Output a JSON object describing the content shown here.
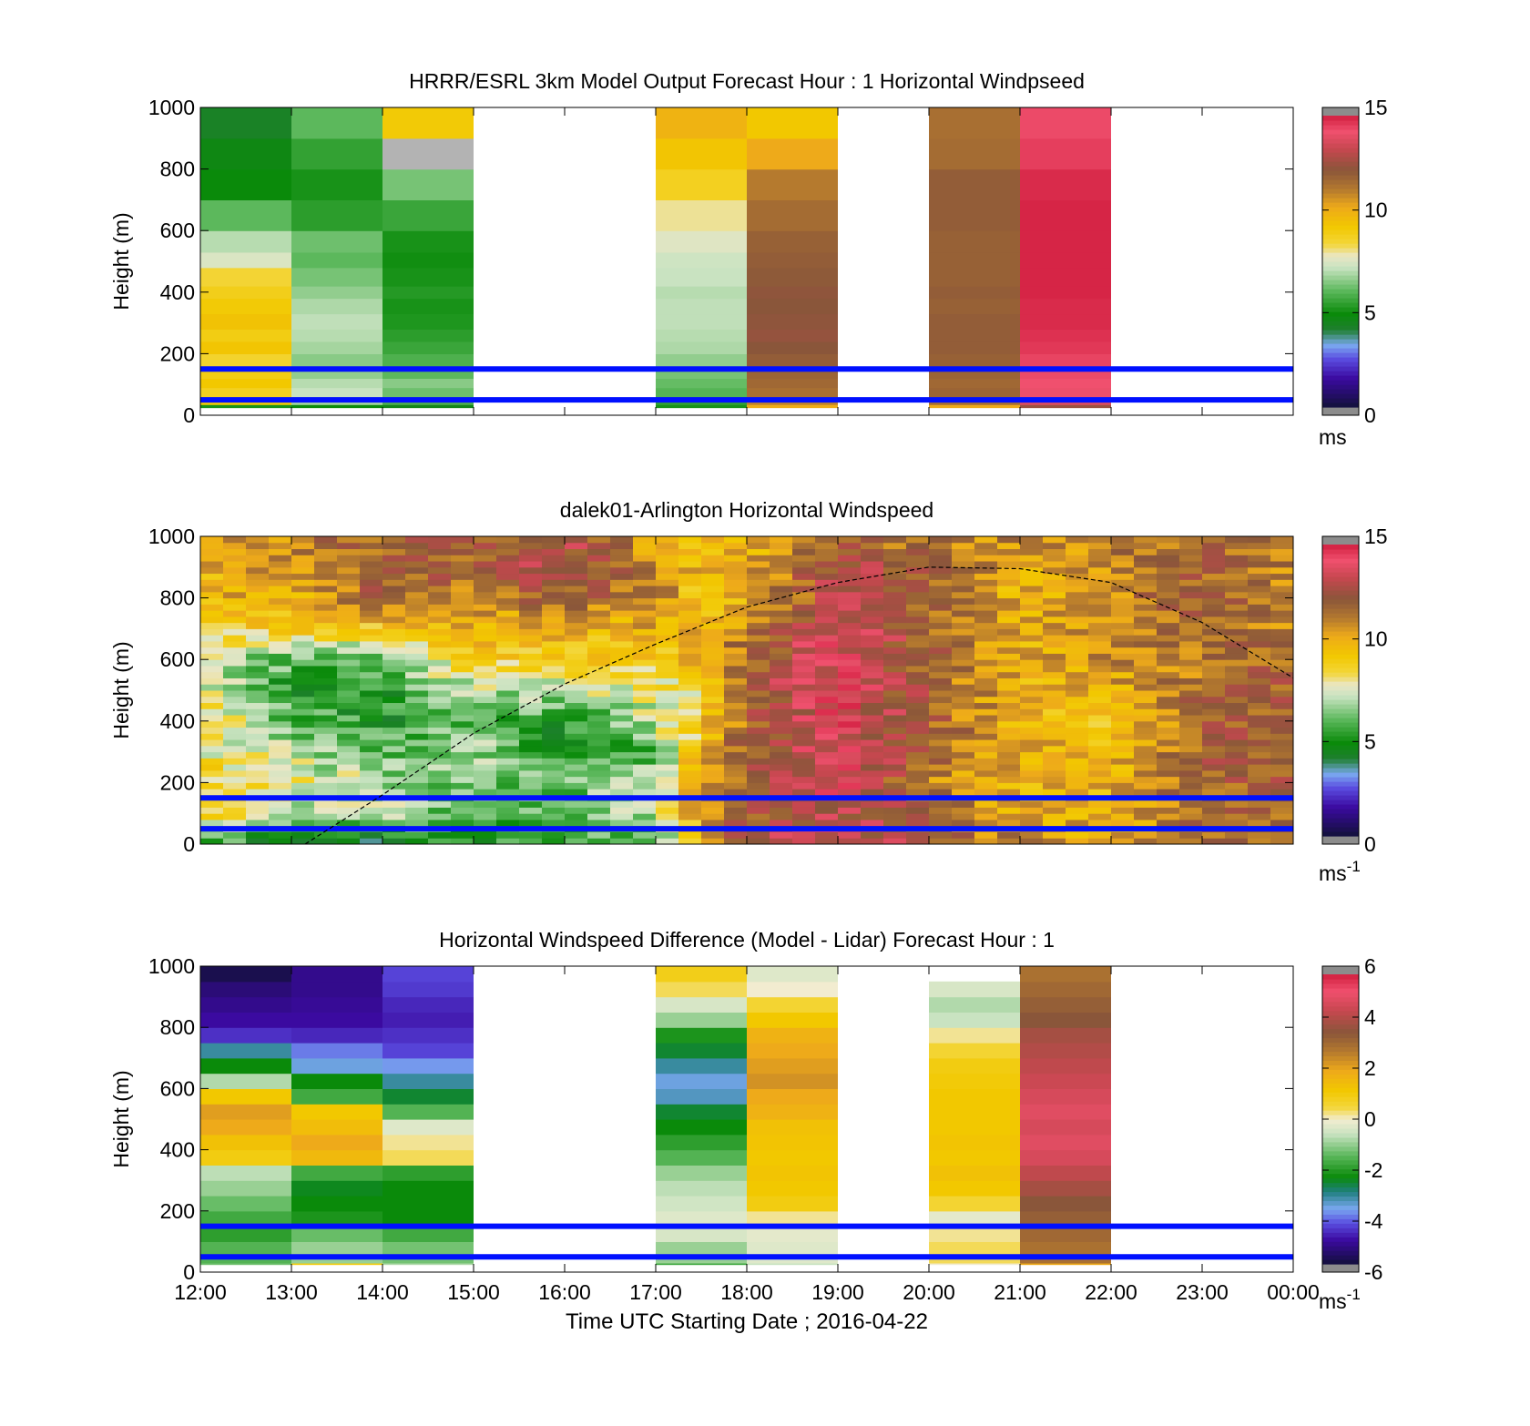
{
  "figure": {
    "shared_xlabel": "Time UTC  Starting Date ; 2016-04-22"
  },
  "colormaps": {
    "windspeed": [
      [
        0.0,
        "#12103a"
      ],
      [
        1.5,
        "#3b0aa0"
      ],
      [
        2.5,
        "#5a4de0"
      ],
      [
        3.2,
        "#7aa8f0"
      ],
      [
        4.0,
        "#1f7f2f"
      ],
      [
        4.8,
        "#0a8a0a"
      ],
      [
        6.0,
        "#5cb85c"
      ],
      [
        7.2,
        "#c9e3c1"
      ],
      [
        7.8,
        "#eae6c4"
      ],
      [
        8.4,
        "#f3d63a"
      ],
      [
        9.3,
        "#f2c800"
      ],
      [
        10.3,
        "#eeaa1a"
      ],
      [
        11.2,
        "#b57a2e"
      ],
      [
        12.2,
        "#8a563a"
      ],
      [
        13.3,
        "#c6474f"
      ],
      [
        14.2,
        "#f0506e"
      ],
      [
        15.0,
        "#d21f40"
      ]
    ],
    "difference": [
      [
        -6.0,
        "#12103a"
      ],
      [
        -5.0,
        "#3b0aa0"
      ],
      [
        -4.3,
        "#5a4de0"
      ],
      [
        -3.7,
        "#7aa8f0"
      ],
      [
        -3.0,
        "#1f7f7f"
      ],
      [
        -2.4,
        "#0a8a0a"
      ],
      [
        -1.5,
        "#5cb85c"
      ],
      [
        -0.6,
        "#c9e3c1"
      ],
      [
        0.0,
        "#f2ecd0"
      ],
      [
        0.5,
        "#f3d63a"
      ],
      [
        1.2,
        "#f2c800"
      ],
      [
        2.0,
        "#eeaa1a"
      ],
      [
        2.8,
        "#b57a2e"
      ],
      [
        3.6,
        "#8a563a"
      ],
      [
        4.5,
        "#c6474f"
      ],
      [
        5.3,
        "#f0506e"
      ],
      [
        6.0,
        "#d21f40"
      ]
    ]
  },
  "chart_data": [
    {
      "type": "heatmap",
      "title": "HRRR/ESRL 3km Model Output   Forecast Hour : 1 Horizontal Windpseed",
      "xlabel": "",
      "ylabel": "Height (m)",
      "xlim": [
        "12:00",
        "00:00"
      ],
      "xticks": [
        "12:00",
        "13:00",
        "14:00",
        "15:00",
        "16:00",
        "17:00",
        "18:00",
        "19:00",
        "20:00",
        "21:00",
        "22:00",
        "23:00",
        "00:00"
      ],
      "show_xtick_labels": false,
      "ylim": [
        0,
        1000
      ],
      "yticks": [
        0,
        200,
        400,
        600,
        800,
        1000
      ],
      "colorbar": {
        "range": [
          0,
          15
        ],
        "ticks": [
          0,
          5,
          10,
          15
        ],
        "label": "ms",
        "label_sup": "",
        "colormap": "windspeed"
      },
      "reference_lines_m": [
        50,
        150
      ],
      "columns": [
        {
          "start_hour": 0,
          "end_hour": 1,
          "levels_m": [
            35,
            60,
            90,
            120,
            150,
            200,
            240,
            280,
            330,
            380,
            420,
            480,
            530,
            600,
            700,
            800,
            900,
            1000
          ],
          "values": [
            5.0,
            9.2,
            8.8,
            9.3,
            9.0,
            8.6,
            9.4,
            9.0,
            9.5,
            9.2,
            8.9,
            8.5,
            7.5,
            7.0,
            6.0,
            4.8,
            4.6,
            4.2
          ]
        },
        {
          "start_hour": 1,
          "end_hour": 2,
          "levels_m": [
            35,
            60,
            90,
            120,
            150,
            200,
            240,
            280,
            330,
            380,
            420,
            480,
            530,
            600,
            700,
            800,
            900,
            1000
          ],
          "values": [
            4.8,
            6.8,
            7.2,
            7.0,
            6.6,
            6.5,
            6.8,
            7.0,
            7.1,
            6.9,
            6.6,
            6.3,
            6.0,
            6.2,
            5.3,
            5.0,
            5.4,
            6.0
          ]
        },
        {
          "start_hour": 2,
          "end_hour": 3,
          "levels_m": [
            35,
            60,
            90,
            120,
            150,
            200,
            240,
            280,
            330,
            380,
            420,
            480,
            530,
            600,
            700,
            800,
            900,
            1000
          ],
          "values": [
            4.5,
            5.8,
            6.2,
            6.5,
            6.0,
            5.8,
            5.5,
            5.3,
            5.1,
            5.0,
            5.2,
            5.0,
            4.9,
            5.0,
            5.5,
            6.3,
            null,
            9.2
          ],
          "missing_color": "#b3b3b3"
        },
        {
          "start_hour": 5,
          "end_hour": 6,
          "levels_m": [
            35,
            60,
            90,
            120,
            150,
            200,
            240,
            280,
            330,
            380,
            420,
            480,
            530,
            600,
            700,
            800,
            900,
            1000
          ],
          "values": [
            5.0,
            5.4,
            5.9,
            6.1,
            6.3,
            6.6,
            6.9,
            7.0,
            7.1,
            7.1,
            7.0,
            7.2,
            7.3,
            7.6,
            8.0,
            8.8,
            9.4,
            10.0
          ]
        },
        {
          "start_hour": 6,
          "end_hour": 7,
          "levels_m": [
            35,
            60,
            90,
            120,
            150,
            200,
            240,
            280,
            330,
            380,
            420,
            480,
            530,
            600,
            700,
            800,
            900,
            1000
          ],
          "values": [
            10.2,
            11.0,
            11.5,
            11.7,
            11.8,
            12.0,
            12.2,
            12.4,
            12.3,
            12.2,
            12.3,
            12.1,
            12.0,
            11.9,
            11.6,
            11.2,
            10.3,
            9.3
          ]
        },
        {
          "start_hour": 8,
          "end_hour": 9,
          "levels_m": [
            35,
            60,
            90,
            120,
            150,
            200,
            240,
            280,
            330,
            380,
            420,
            480,
            530,
            600,
            700,
            800,
            900,
            1000
          ],
          "values": [
            10.3,
            11.5,
            11.8,
            11.7,
            11.8,
            11.9,
            12.0,
            12.0,
            12.0,
            11.9,
            12.0,
            11.9,
            11.9,
            11.9,
            12.0,
            12.0,
            11.6,
            11.5
          ]
        },
        {
          "start_hour": 9,
          "end_hour": 10,
          "levels_m": [
            35,
            60,
            90,
            120,
            150,
            200,
            240,
            280,
            330,
            380,
            420,
            480,
            530,
            600,
            700,
            800,
            900,
            1000
          ],
          "values": [
            12.5,
            13.8,
            14.1,
            14.2,
            14.3,
            14.4,
            14.6,
            14.7,
            14.8,
            14.8,
            14.9,
            14.9,
            14.9,
            14.9,
            14.9,
            14.8,
            14.5,
            14.3
          ]
        }
      ]
    },
    {
      "type": "heatmap",
      "title": "dalek01-Arlington  Horizontal Windspeed",
      "xlabel": "",
      "ylabel": "Height (m)",
      "xlim": [
        "12:00",
        "00:00"
      ],
      "xticks": [
        "12:00",
        "13:00",
        "14:00",
        "15:00",
        "16:00",
        "17:00",
        "18:00",
        "19:00",
        "20:00",
        "21:00",
        "22:00",
        "23:00",
        "00:00"
      ],
      "show_xtick_labels": false,
      "ylim": [
        0,
        1000
      ],
      "yticks": [
        0,
        200,
        400,
        600,
        800,
        1000
      ],
      "colorbar": {
        "range": [
          0,
          15
        ],
        "ticks": [
          0,
          5,
          10,
          15
        ],
        "label": "ms",
        "label_sup": "-1",
        "colormap": "windspeed"
      },
      "reference_lines_m": [
        50,
        150
      ],
      "dashed_curve": {
        "hours": [
          1.15,
          2.0,
          3.0,
          4.0,
          5.0,
          6.0,
          7.0,
          8.0,
          9.0,
          10.0,
          11.0,
          12.0
        ],
        "heights_m": [
          0,
          160,
          360,
          520,
          650,
          770,
          850,
          900,
          895,
          850,
          720,
          540
        ]
      },
      "hour_anchor_profiles": {
        "hours": [
          0,
          1,
          2,
          3,
          4,
          5,
          5.5,
          6,
          7,
          8,
          9,
          10,
          11,
          12
        ],
        "levels_m": [
          0,
          100,
          200,
          300,
          400,
          500,
          600,
          700,
          800,
          900,
          1000
        ],
        "values": [
          [
            6,
            9,
            9,
            8,
            9,
            8,
            7,
            9,
            10,
            10,
            10
          ],
          [
            4,
            7,
            8,
            7,
            6,
            5,
            6,
            9,
            10,
            11,
            11
          ],
          [
            4,
            7,
            7,
            6,
            5,
            5,
            6,
            9,
            12,
            12,
            12
          ],
          [
            5,
            6,
            6,
            7,
            6,
            7,
            9,
            10,
            11,
            12,
            12
          ],
          [
            5,
            6,
            6,
            5,
            5,
            7,
            9,
            10,
            12,
            13,
            13
          ],
          [
            6,
            7,
            7,
            6,
            7,
            8,
            9,
            10,
            11,
            11,
            10
          ],
          [
            9,
            11,
            11,
            10,
            9,
            8,
            10,
            10,
            9,
            10,
            9
          ],
          [
            13,
            12,
            12,
            12,
            12,
            12,
            12,
            11,
            10,
            10,
            10
          ],
          [
            14,
            13,
            14,
            14,
            14,
            14,
            14,
            14,
            13,
            13,
            12
          ],
          [
            12,
            12,
            11,
            12,
            12,
            12,
            12,
            12,
            12,
            12,
            11
          ],
          [
            11,
            10,
            10,
            10,
            10,
            10,
            10,
            10,
            10,
            10,
            11
          ],
          [
            10,
            10,
            10,
            10,
            9,
            10,
            11,
            11,
            11,
            11,
            11
          ],
          [
            12,
            12,
            12,
            12,
            12,
            12,
            11,
            12,
            12,
            12,
            12
          ],
          [
            11,
            12,
            12,
            12,
            12,
            12,
            12,
            11,
            11,
            11,
            11
          ]
        ]
      }
    },
    {
      "type": "heatmap",
      "title": "Horizontal Windspeed Difference (Model - Lidar) Forecast Hour : 1",
      "xlabel": "Time UTC  Starting Date ; 2016-04-22",
      "ylabel": "Height (m)",
      "xlim": [
        "12:00",
        "00:00"
      ],
      "xticks": [
        "12:00",
        "13:00",
        "14:00",
        "15:00",
        "16:00",
        "17:00",
        "18:00",
        "19:00",
        "20:00",
        "21:00",
        "22:00",
        "23:00",
        "00:00"
      ],
      "show_xtick_labels": true,
      "ylim": [
        0,
        1000
      ],
      "yticks": [
        0,
        200,
        400,
        600,
        800,
        1000
      ],
      "colorbar": {
        "range": [
          -6,
          6
        ],
        "ticks": [
          -6,
          -4,
          -2,
          0,
          2,
          4,
          6
        ],
        "label": "ms",
        "label_sup": "-1",
        "colormap": "difference"
      },
      "reference_lines_m": [
        50,
        150
      ],
      "columns": [
        {
          "start_hour": 0,
          "end_hour": 1,
          "levels_m": [
            30,
            100,
            150,
            200,
            250,
            300,
            350,
            400,
            450,
            500,
            550,
            600,
            650,
            700,
            750,
            800,
            850,
            900,
            950,
            1000
          ],
          "values": [
            -1.3,
            -1.6,
            -2.0,
            -1.8,
            -1.4,
            -1.0,
            -0.7,
            1.0,
            1.4,
            2.0,
            2.2,
            1.2,
            -0.8,
            -2.4,
            -3.2,
            -4.6,
            -5.0,
            -5.2,
            -5.4,
            -5.8
          ]
        },
        {
          "start_hour": 1,
          "end_hour": 2,
          "levels_m": [
            30,
            100,
            150,
            200,
            250,
            300,
            350,
            400,
            450,
            500,
            550,
            600,
            650,
            700,
            750,
            800,
            850,
            900,
            950,
            1000
          ],
          "values": [
            1.0,
            -1.0,
            -1.4,
            -2.2,
            -2.4,
            -2.5,
            -1.8,
            1.6,
            2.0,
            1.5,
            1.2,
            -1.8,
            -2.4,
            -3.6,
            -4.0,
            -4.7,
            -5.0,
            -5.1,
            -5.2,
            -5.2
          ]
        },
        {
          "start_hour": 2,
          "end_hour": 3,
          "levels_m": [
            30,
            100,
            150,
            200,
            250,
            300,
            350,
            400,
            450,
            500,
            550,
            600,
            650,
            700,
            750,
            800,
            850,
            900,
            950,
            1000
          ],
          "values": [
            -0.8,
            -1.3,
            -1.8,
            -2.4,
            -2.4,
            -2.4,
            -2.0,
            0.4,
            0.2,
            -0.3,
            -1.6,
            -2.6,
            -3.2,
            -3.8,
            -4.4,
            -4.6,
            -4.8,
            -4.7,
            -4.5,
            -4.4
          ]
        },
        {
          "start_hour": 5,
          "end_hour": 6,
          "levels_m": [
            30,
            100,
            150,
            200,
            250,
            300,
            350,
            400,
            450,
            500,
            550,
            600,
            650,
            700,
            750,
            800,
            850,
            900,
            950,
            1000
          ],
          "values": [
            -1.8,
            -1.0,
            -0.4,
            -0.3,
            -0.5,
            -0.7,
            -1.0,
            -1.6,
            -2.0,
            -2.4,
            -2.6,
            -3.4,
            -3.6,
            -3.2,
            -2.6,
            -2.2,
            -1.0,
            -0.4,
            0.4,
            0.9
          ]
        },
        {
          "start_hour": 6,
          "end_hour": 7,
          "levels_m": [
            30,
            100,
            150,
            200,
            250,
            300,
            350,
            400,
            450,
            500,
            550,
            600,
            650,
            700,
            750,
            800,
            850,
            900,
            950,
            1000
          ],
          "values": [
            -0.6,
            -0.3,
            -0.2,
            0.2,
            1.0,
            1.2,
            1.3,
            1.2,
            1.3,
            1.4,
            1.8,
            2.0,
            2.4,
            2.2,
            2.0,
            1.8,
            1.2,
            0.6,
            0.0,
            -0.3
          ]
        },
        {
          "start_hour": 8,
          "end_hour": 9,
          "levels_m": [
            30,
            100,
            150,
            200,
            250,
            300,
            350,
            400,
            450,
            500,
            550,
            600,
            650,
            700,
            750,
            800,
            850,
            900,
            950
          ],
          "values": [
            0.0,
            0.4,
            0.2,
            -0.2,
            0.6,
            1.2,
            1.4,
            1.2,
            1.3,
            1.2,
            1.2,
            1.2,
            1.1,
            1.0,
            0.6,
            0.2,
            -0.6,
            -0.8,
            -0.4
          ]
        },
        {
          "start_hour": 9,
          "end_hour": 10,
          "levels_m": [
            30,
            100,
            150,
            200,
            250,
            300,
            350,
            400,
            450,
            500,
            550,
            600,
            650,
            700,
            750,
            800,
            850,
            900,
            950,
            1000
          ],
          "values": [
            2.0,
            3.0,
            3.2,
            3.4,
            3.6,
            4.0,
            4.4,
            4.8,
            5.0,
            4.8,
            5.0,
            4.8,
            4.6,
            4.4,
            4.2,
            4.0,
            3.6,
            3.4,
            3.2,
            3.0
          ]
        }
      ]
    }
  ]
}
